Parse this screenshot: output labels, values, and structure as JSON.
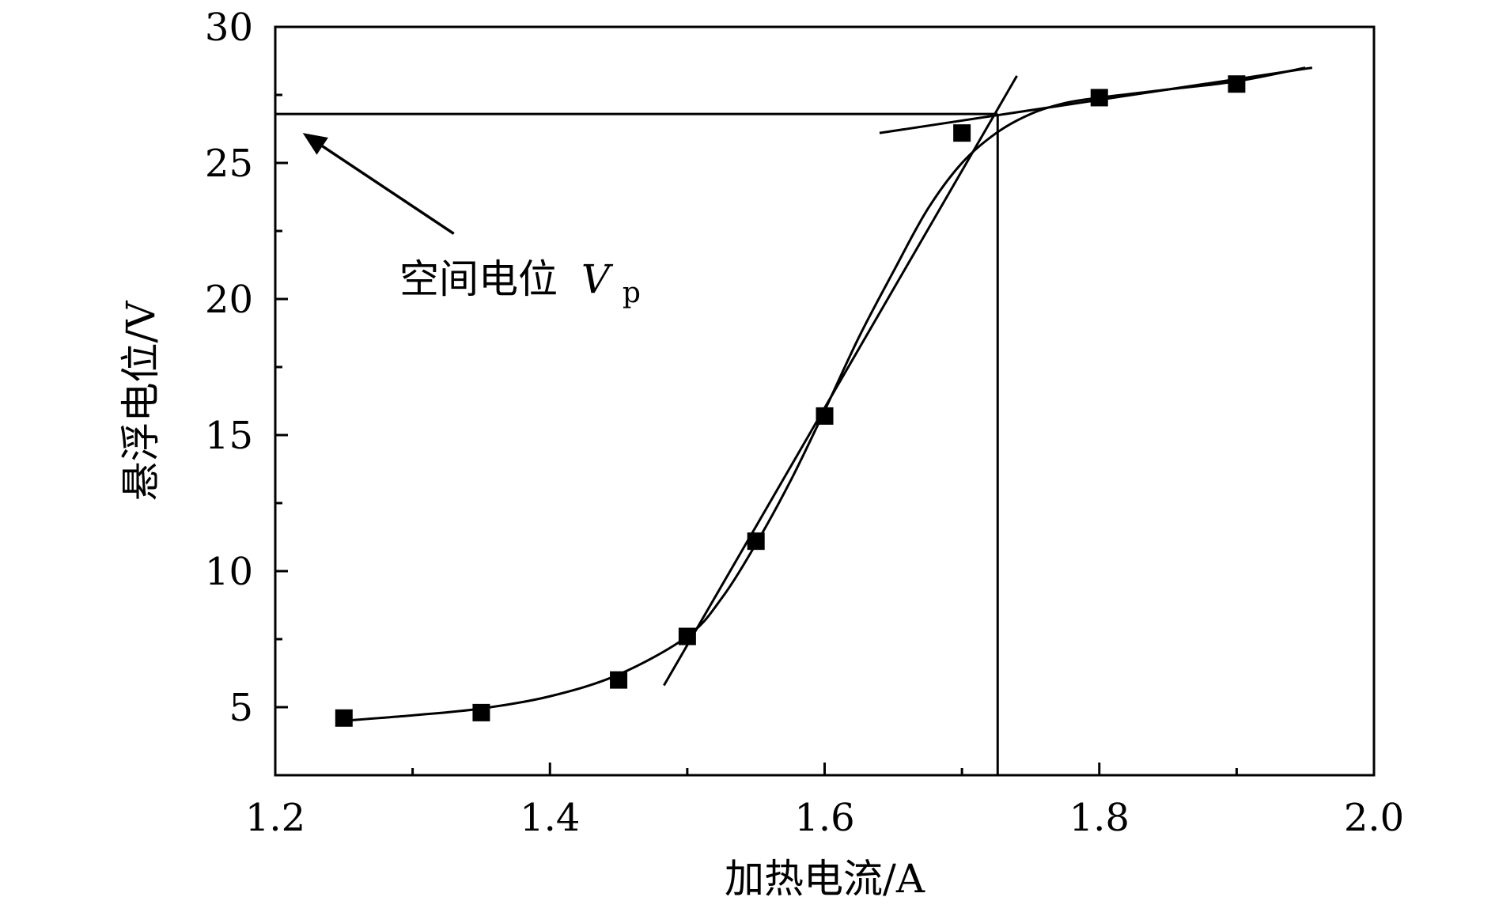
{
  "chart_data": {
    "type": "scatter",
    "title": "",
    "xlabel": "加热电流/A",
    "ylabel": "悬浮电位/V",
    "xlim": [
      1.2,
      2.0
    ],
    "ylim": [
      2.5,
      30
    ],
    "x_ticks": [
      1.2,
      1.4,
      1.6,
      1.8,
      2.0
    ],
    "x_tick_labels": [
      "1.2",
      "1.4",
      "1.6",
      "1.8",
      "2.0"
    ],
    "y_ticks": [
      5,
      10,
      15,
      20,
      25,
      30
    ],
    "y_tick_labels": [
      "5",
      "10",
      "15",
      "20",
      "25",
      "30"
    ],
    "grid": false,
    "series": [
      {
        "marker": "square",
        "color": "#000000",
        "x": [
          1.25,
          1.35,
          1.45,
          1.5,
          1.55,
          1.6,
          1.7,
          1.8,
          1.9
        ],
        "y": [
          4.6,
          4.8,
          6.0,
          7.6,
          11.1,
          15.7,
          26.1,
          27.4,
          27.9
        ]
      }
    ],
    "fit_curve": {
      "x": [
        1.25,
        1.3,
        1.35,
        1.4,
        1.45,
        1.5,
        1.525,
        1.55,
        1.575,
        1.6,
        1.625,
        1.65,
        1.675,
        1.7,
        1.725,
        1.75,
        1.775,
        1.8,
        1.85,
        1.9,
        1.95
      ],
      "y": [
        4.5,
        4.7,
        4.95,
        5.4,
        6.2,
        7.6,
        9.0,
        11.0,
        13.3,
        15.9,
        18.6,
        21.0,
        23.3,
        25.0,
        26.1,
        26.8,
        27.2,
        27.4,
        27.7,
        28.0,
        28.5
      ]
    },
    "tangent_lines": [
      {
        "x": [
          1.483,
          1.74
        ],
        "y": [
          5.8,
          28.2
        ]
      },
      {
        "x": [
          1.64,
          1.955
        ],
        "y": [
          26.1,
          28.5
        ]
      }
    ],
    "reference_lines": {
      "horizontal_y": 26.8,
      "vertical_x": 1.726
    },
    "annotation": {
      "text": "空间电位",
      "symbol": "V",
      "subscript": "p",
      "arrow_target": {
        "x": 1.22,
        "y": 26.1
      },
      "arrow_tail": {
        "x": 1.33,
        "y": 22.4
      }
    }
  }
}
